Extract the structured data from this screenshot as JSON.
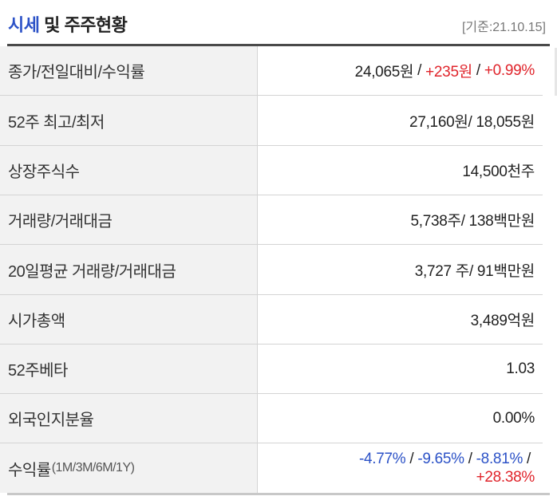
{
  "header": {
    "title_accent": "시세",
    "title_rest": " 및 주주현황",
    "base_date": "[기준:21.10.15]"
  },
  "rows": [
    {
      "label": "종가/전일대비/수익률",
      "price": "24,065원",
      "sep1": " / ",
      "change": "+235원",
      "sep2": " / ",
      "rate": "+0.99%"
    },
    {
      "label": "52주 최고/최저",
      "value": "27,160원/ 18,055원"
    },
    {
      "label": "상장주식수",
      "value": "14,500천주"
    },
    {
      "label": "거래량/거래대금",
      "value": "5,738주/ 138백만원"
    },
    {
      "label": "20일평균 거래량/거래대금",
      "value": "3,727 주/ 91백만원"
    },
    {
      "label": "시가총액",
      "value": "3,489억원"
    },
    {
      "label": "52주베타",
      "value": "1.03"
    },
    {
      "label": "외국인지분율",
      "value": "0.00%"
    },
    {
      "label": "수익률",
      "label_small": "(1M/3M/6M/1Y)",
      "r1m": "-4.77%",
      "r3m": "-9.65%",
      "r6m": "-8.81%",
      "r1y": "+28.38%",
      "sep": " / "
    }
  ],
  "colors": {
    "accent": "#2c52c7",
    "up": "#e0242b",
    "down": "#2c52c7"
  }
}
